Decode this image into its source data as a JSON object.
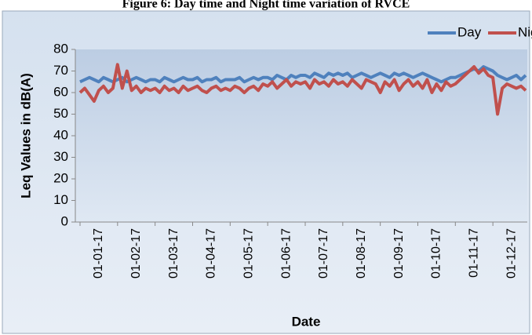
{
  "chart_data": {
    "type": "line",
    "title": "Figure 6: Day time and Night time variation of RVCE",
    "x_label": "Date",
    "y_label": "Leq Values in dB(A)",
    "categories": [
      "01-01-17",
      null,
      null,
      null,
      null,
      null,
      null,
      null,
      "01-02-17",
      null,
      null,
      null,
      null,
      null,
      null,
      null,
      "01-03-17",
      null,
      null,
      null,
      null,
      null,
      null,
      null,
      "01-04-17",
      null,
      null,
      null,
      null,
      null,
      null,
      null,
      "01-05-17",
      null,
      null,
      null,
      null,
      null,
      null,
      null,
      "01-06-17",
      null,
      null,
      null,
      null,
      null,
      null,
      null,
      "01-07-17",
      null,
      null,
      null,
      null,
      null,
      null,
      null,
      "01-08-17",
      null,
      null,
      null,
      null,
      null,
      null,
      null,
      "01-09-17",
      null,
      null,
      null,
      null,
      null,
      null,
      null,
      "01-10-17",
      null,
      null,
      null,
      null,
      null,
      null,
      null,
      "01-11-17",
      null,
      null,
      null,
      null,
      null,
      null,
      null,
      "01-12-17",
      null,
      null,
      null,
      null,
      null,
      null,
      null
    ],
    "series": [
      {
        "name": "Day",
        "color": "#4f81bd",
        "values": [
          65,
          66,
          67,
          66,
          65,
          67,
          66,
          65,
          66,
          67,
          65,
          66,
          67,
          66,
          65,
          66,
          66,
          65,
          67,
          66,
          65,
          66,
          67,
          66,
          66,
          67,
          65,
          66,
          66,
          67,
          65,
          66,
          66,
          66,
          67,
          65,
          66,
          67,
          66,
          67,
          67,
          66,
          68,
          67,
          66,
          68,
          67,
          68,
          68,
          67,
          69,
          68,
          67,
          69,
          68,
          69,
          68,
          69,
          67,
          68,
          69,
          68,
          67,
          68,
          69,
          68,
          67,
          69,
          68,
          69,
          68,
          67,
          68,
          69,
          68,
          67,
          66,
          65,
          66,
          67,
          67,
          68,
          69,
          70,
          71,
          70,
          72,
          71,
          70,
          68,
          67,
          66,
          67,
          68,
          66,
          68
        ]
      },
      {
        "name": "Night",
        "color": "#c0504d",
        "values": [
          60,
          62,
          59,
          56,
          61,
          63,
          60,
          62,
          73,
          62,
          70,
          61,
          63,
          60,
          62,
          61,
          62,
          60,
          63,
          61,
          62,
          60,
          63,
          61,
          62,
          63,
          61,
          60,
          62,
          63,
          61,
          62,
          61,
          63,
          62,
          60,
          62,
          63,
          61,
          64,
          63,
          65,
          62,
          64,
          66,
          63,
          65,
          64,
          65,
          62,
          66,
          64,
          65,
          63,
          66,
          64,
          65,
          63,
          66,
          64,
          62,
          66,
          65,
          64,
          60,
          65,
          63,
          66,
          61,
          64,
          66,
          63,
          65,
          62,
          66,
          60,
          64,
          61,
          65,
          63,
          64,
          66,
          68,
          70,
          72,
          69,
          71,
          68,
          67,
          50,
          62,
          64,
          63,
          62,
          63,
          61
        ]
      }
    ],
    "ylim": [
      0,
      80
    ],
    "yticks": [
      0,
      10,
      20,
      30,
      40,
      50,
      60,
      70,
      80
    ],
    "legend": "top-right"
  }
}
